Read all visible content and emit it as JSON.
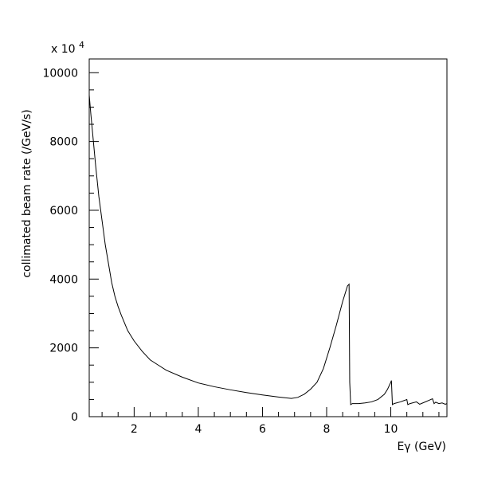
{
  "chart_data": {
    "type": "line",
    "title": "",
    "xlabel": "Eγ (GeV)",
    "ylabel": "collimated beam rate (/GeV/s)",
    "y_multiplier_label": "x 10",
    "y_multiplier_exponent": "4",
    "xlim": [
      0.6,
      11.75
    ],
    "ylim": [
      0,
      10400
    ],
    "x_ticks": [
      {
        "value": 2,
        "label": "2"
      },
      {
        "value": 4,
        "label": "4"
      },
      {
        "value": 6,
        "label": "6"
      },
      {
        "value": 8,
        "label": "8"
      },
      {
        "value": 10,
        "label": "10"
      }
    ],
    "y_ticks": [
      {
        "value": 0,
        "label": "0"
      },
      {
        "value": 2000,
        "label": "2000"
      },
      {
        "value": 4000,
        "label": "4000"
      },
      {
        "value": 6000,
        "label": "6000"
      },
      {
        "value": 8000,
        "label": "8000"
      },
      {
        "value": 10000,
        "label": "10000"
      }
    ],
    "grid": false,
    "series": [
      {
        "x": [
          0.6,
          0.65,
          0.7,
          0.8,
          0.9,
          1.0,
          1.1,
          1.2,
          1.3,
          1.4,
          1.5,
          1.6,
          1.8,
          2.0,
          2.25,
          2.5,
          2.75,
          3.0,
          3.5,
          4.0,
          4.5,
          5.0,
          5.5,
          6.0,
          6.5,
          6.9,
          7.1,
          7.3,
          7.5,
          7.7,
          7.9,
          8.1,
          8.3,
          8.5,
          8.65,
          8.7,
          8.72,
          8.75,
          8.8,
          9.0,
          9.2,
          9.4,
          9.6,
          9.8,
          9.9,
          10.0,
          10.02,
          10.05,
          10.1,
          10.3,
          10.45,
          10.5,
          10.53,
          10.6,
          10.8,
          10.9,
          11.0,
          11.2,
          11.3,
          11.35,
          11.4,
          11.5,
          11.6,
          11.7,
          11.75
        ],
        "values": [
          9350,
          8800,
          8300,
          7300,
          6400,
          5700,
          5000,
          4450,
          3900,
          3500,
          3200,
          2950,
          2500,
          2200,
          1900,
          1650,
          1500,
          1350,
          1150,
          980,
          870,
          780,
          700,
          630,
          570,
          530,
          560,
          650,
          800,
          1000,
          1400,
          2000,
          2650,
          3350,
          3800,
          3850,
          1000,
          350,
          380,
          380,
          400,
          430,
          500,
          650,
          800,
          1000,
          1050,
          350,
          380,
          430,
          480,
          500,
          350,
          380,
          430,
          360,
          400,
          480,
          520,
          380,
          420,
          380,
          400,
          360,
          380
        ]
      }
    ]
  }
}
